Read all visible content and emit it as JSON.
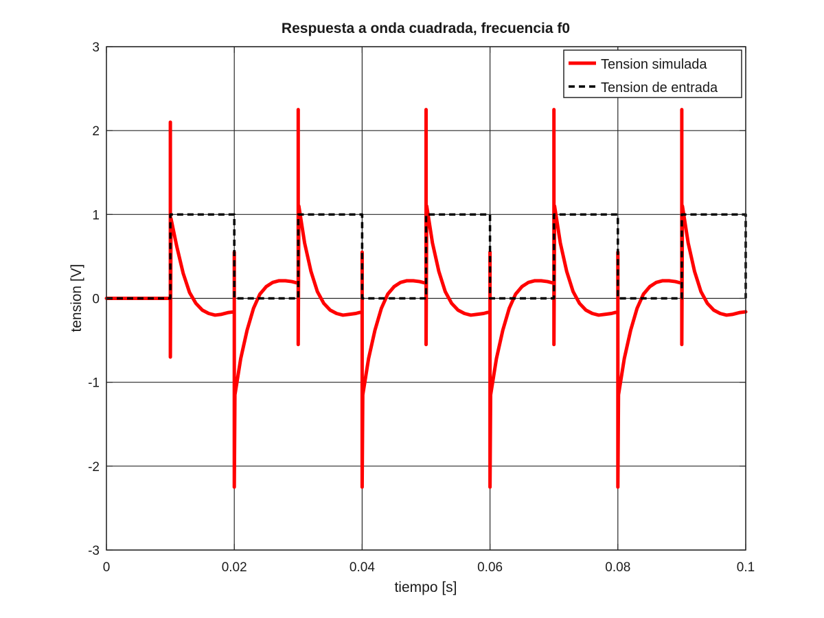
{
  "chart_data": {
    "type": "line",
    "title": "Respuesta a onda cuadrada, frecuencia f0",
    "xlabel": "tiempo [s]",
    "ylabel": "tension [V]",
    "xlim": [
      0,
      0.1
    ],
    "ylim": [
      -3,
      3
    ],
    "x_ticks": [
      0,
      0.02,
      0.04,
      0.06,
      0.08,
      0.1
    ],
    "x_tick_labels": [
      "0",
      "0.02",
      "0.04",
      "0.06",
      "0.08",
      "0.1"
    ],
    "y_ticks": [
      -3,
      -2,
      -1,
      0,
      1,
      2,
      3
    ],
    "y_tick_labels": [
      "-3",
      "-2",
      "-1",
      "0",
      "1",
      "2",
      "3"
    ],
    "grid": true,
    "legend_position": "top-right",
    "series": [
      {
        "name": "Tension simulada",
        "color": "#ff0000",
        "style": "solid",
        "points": [
          [
            0,
            0
          ],
          [
            0.01,
            0
          ],
          [
            0.01,
            2.1
          ],
          [
            0.01,
            -0.7
          ],
          [
            0.0101,
            0.95
          ],
          [
            0.011,
            0.62
          ],
          [
            0.012,
            0.3
          ],
          [
            0.013,
            0.07
          ],
          [
            0.014,
            -0.06
          ],
          [
            0.015,
            -0.14
          ],
          [
            0.016,
            -0.18
          ],
          [
            0.017,
            -0.2
          ],
          [
            0.018,
            -0.19
          ],
          [
            0.019,
            -0.17
          ],
          [
            0.02,
            -0.16
          ],
          [
            0.02,
            0.55
          ],
          [
            0.02,
            -2.25
          ],
          [
            0.0201,
            -1.15
          ],
          [
            0.021,
            -0.72
          ],
          [
            0.022,
            -0.38
          ],
          [
            0.023,
            -0.12
          ],
          [
            0.024,
            0.05
          ],
          [
            0.025,
            0.14
          ],
          [
            0.026,
            0.19
          ],
          [
            0.027,
            0.21
          ],
          [
            0.028,
            0.21
          ],
          [
            0.029,
            0.2
          ],
          [
            0.03,
            0.18
          ],
          [
            0.03,
            2.25
          ],
          [
            0.03,
            -0.55
          ],
          [
            0.0301,
            1.1
          ],
          [
            0.031,
            0.66
          ],
          [
            0.032,
            0.32
          ],
          [
            0.033,
            0.08
          ],
          [
            0.034,
            -0.06
          ],
          [
            0.035,
            -0.14
          ],
          [
            0.036,
            -0.18
          ],
          [
            0.037,
            -0.2
          ],
          [
            0.038,
            -0.19
          ],
          [
            0.039,
            -0.18
          ],
          [
            0.04,
            -0.16
          ],
          [
            0.04,
            0.55
          ],
          [
            0.04,
            -2.25
          ],
          [
            0.0401,
            -1.15
          ],
          [
            0.041,
            -0.72
          ],
          [
            0.042,
            -0.38
          ],
          [
            0.043,
            -0.12
          ],
          [
            0.044,
            0.05
          ],
          [
            0.045,
            0.14
          ],
          [
            0.046,
            0.19
          ],
          [
            0.047,
            0.21
          ],
          [
            0.048,
            0.21
          ],
          [
            0.049,
            0.2
          ],
          [
            0.05,
            0.18
          ],
          [
            0.05,
            2.25
          ],
          [
            0.05,
            -0.55
          ],
          [
            0.0501,
            1.1
          ],
          [
            0.051,
            0.66
          ],
          [
            0.052,
            0.32
          ],
          [
            0.053,
            0.08
          ],
          [
            0.054,
            -0.06
          ],
          [
            0.055,
            -0.14
          ],
          [
            0.056,
            -0.18
          ],
          [
            0.057,
            -0.2
          ],
          [
            0.058,
            -0.19
          ],
          [
            0.059,
            -0.18
          ],
          [
            0.06,
            -0.16
          ],
          [
            0.06,
            0.55
          ],
          [
            0.06,
            -2.25
          ],
          [
            0.0601,
            -1.15
          ],
          [
            0.061,
            -0.72
          ],
          [
            0.062,
            -0.38
          ],
          [
            0.063,
            -0.12
          ],
          [
            0.064,
            0.05
          ],
          [
            0.065,
            0.14
          ],
          [
            0.066,
            0.19
          ],
          [
            0.067,
            0.21
          ],
          [
            0.068,
            0.21
          ],
          [
            0.069,
            0.2
          ],
          [
            0.07,
            0.18
          ],
          [
            0.07,
            2.25
          ],
          [
            0.07,
            -0.55
          ],
          [
            0.0701,
            1.1
          ],
          [
            0.071,
            0.66
          ],
          [
            0.072,
            0.32
          ],
          [
            0.073,
            0.08
          ],
          [
            0.074,
            -0.06
          ],
          [
            0.075,
            -0.14
          ],
          [
            0.076,
            -0.18
          ],
          [
            0.077,
            -0.2
          ],
          [
            0.078,
            -0.19
          ],
          [
            0.079,
            -0.18
          ],
          [
            0.08,
            -0.16
          ],
          [
            0.08,
            0.55
          ],
          [
            0.08,
            -2.25
          ],
          [
            0.0801,
            -1.15
          ],
          [
            0.081,
            -0.72
          ],
          [
            0.082,
            -0.38
          ],
          [
            0.083,
            -0.12
          ],
          [
            0.084,
            0.05
          ],
          [
            0.085,
            0.14
          ],
          [
            0.086,
            0.19
          ],
          [
            0.087,
            0.21
          ],
          [
            0.088,
            0.21
          ],
          [
            0.089,
            0.2
          ],
          [
            0.09,
            0.18
          ],
          [
            0.09,
            2.25
          ],
          [
            0.09,
            -0.55
          ],
          [
            0.0901,
            1.1
          ],
          [
            0.091,
            0.66
          ],
          [
            0.092,
            0.32
          ],
          [
            0.093,
            0.08
          ],
          [
            0.094,
            -0.06
          ],
          [
            0.095,
            -0.14
          ],
          [
            0.096,
            -0.18
          ],
          [
            0.097,
            -0.2
          ],
          [
            0.098,
            -0.19
          ],
          [
            0.099,
            -0.17
          ],
          [
            0.1,
            -0.16
          ]
        ]
      },
      {
        "name": "Tension de entrada",
        "color": "#000000",
        "style": "dashed",
        "points": [
          [
            0,
            0
          ],
          [
            0.01,
            0
          ],
          [
            0.01,
            1
          ],
          [
            0.02,
            1
          ],
          [
            0.02,
            0
          ],
          [
            0.03,
            0
          ],
          [
            0.03,
            1
          ],
          [
            0.04,
            1
          ],
          [
            0.04,
            0
          ],
          [
            0.05,
            0
          ],
          [
            0.05,
            1
          ],
          [
            0.06,
            1
          ],
          [
            0.06,
            0
          ],
          [
            0.07,
            0
          ],
          [
            0.07,
            1
          ],
          [
            0.08,
            1
          ],
          [
            0.08,
            0
          ],
          [
            0.09,
            0
          ],
          [
            0.09,
            1
          ],
          [
            0.1,
            1
          ],
          [
            0.1,
            0
          ]
        ]
      }
    ]
  }
}
